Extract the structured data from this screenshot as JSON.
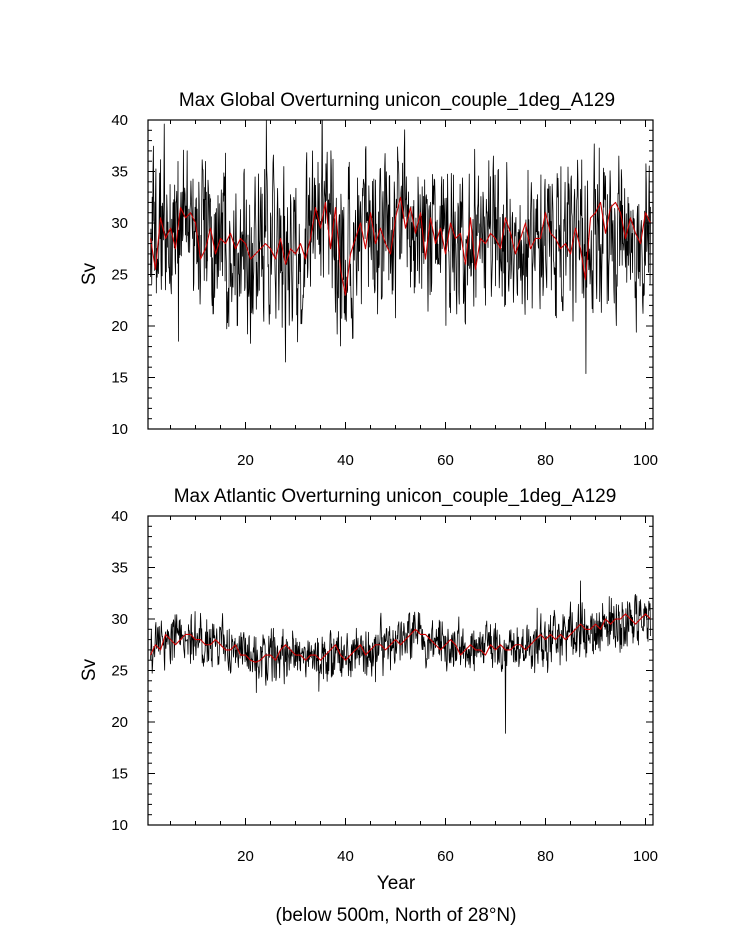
{
  "chart_data": [
    {
      "type": "line",
      "title": "Max Global Overturning unicon_couple_1deg_A129",
      "ylabel": "Sv",
      "xlabel": "",
      "xlim": [
        0.5,
        101.5
      ],
      "ylim": [
        10,
        40
      ],
      "xticks": [
        "20",
        "40",
        "60",
        "80",
        "100"
      ],
      "yticks": [
        "10",
        "15",
        "20",
        "25",
        "30",
        "35",
        "40"
      ],
      "series": [
        {
          "color": "#000000",
          "monthly": true,
          "x_start": 1,
          "x_end": 101,
          "anchor_years": [
            1,
            5,
            10,
            15,
            20,
            25,
            30,
            35,
            40,
            45,
            50,
            55,
            60,
            65,
            70,
            75,
            80,
            85,
            90,
            95,
            100,
            101
          ],
          "center": [
            28,
            29,
            30,
            29,
            28,
            27,
            27,
            30,
            26,
            29,
            29,
            29,
            28,
            28,
            28,
            28,
            28,
            28,
            29,
            29,
            29,
            28
          ],
          "amplitude": [
            6.5,
            7,
            7,
            7,
            7,
            7,
            7,
            7.5,
            8,
            7,
            7.5,
            7.5,
            7,
            7,
            7,
            7,
            7,
            7,
            7.5,
            7.5,
            7.5,
            7
          ],
          "extremes": {
            "max_value": 40,
            "min_value": 16.5,
            "min_year": 28
          }
        },
        {
          "color": "#cc0000",
          "x": [
            1,
            2,
            3,
            4,
            5,
            6,
            7,
            8,
            9,
            10,
            11,
            12,
            13,
            14,
            15,
            16,
            17,
            18,
            19,
            20,
            21,
            22,
            23,
            24,
            25,
            26,
            27,
            28,
            29,
            30,
            31,
            32,
            33,
            34,
            35,
            36,
            37,
            38,
            39,
            40,
            41,
            42,
            43,
            44,
            45,
            46,
            47,
            48,
            49,
            50,
            51,
            52,
            53,
            54,
            55,
            56,
            57,
            58,
            59,
            60,
            61,
            62,
            63,
            64,
            65,
            66,
            67,
            68,
            69,
            70,
            71,
            72,
            73,
            74,
            75,
            76,
            77,
            78,
            79,
            80,
            81,
            82,
            83,
            84,
            85,
            86,
            87,
            88,
            89,
            90,
            91,
            92,
            93,
            94,
            95,
            96,
            97,
            98,
            99,
            100,
            101
          ],
          "values": [
            28.5,
            25.5,
            30.5,
            28.5,
            29.5,
            27.5,
            31.5,
            30.5,
            31.0,
            30.0,
            26.5,
            27.5,
            29.5,
            27.0,
            28.5,
            28.0,
            29.0,
            27.5,
            28.5,
            28.0,
            26.5,
            27.0,
            27.5,
            28.0,
            27.5,
            26.5,
            28.5,
            26.0,
            27.5,
            27.0,
            28.0,
            26.5,
            28.5,
            31.5,
            29.5,
            32.0,
            27.5,
            31.5,
            25.5,
            23.0,
            27.0,
            28.5,
            30.0,
            27.5,
            31.0,
            28.0,
            29.5,
            28.0,
            27.0,
            30.5,
            32.5,
            29.5,
            31.5,
            29.0,
            31.0,
            26.5,
            30.5,
            28.0,
            29.5,
            27.0,
            30.0,
            28.5,
            29.0,
            26.0,
            30.5,
            25.5,
            28.5,
            28.0,
            29.0,
            28.5,
            27.5,
            30.5,
            29.0,
            27.0,
            28.5,
            30.0,
            27.5,
            28.5,
            28.5,
            31.0,
            29.0,
            28.5,
            27.5,
            28.0,
            27.0,
            29.5,
            27.5,
            24.5,
            30.5,
            31.0,
            32.0,
            29.0,
            31.5,
            32.0,
            31.0,
            28.5,
            30.5,
            29.0,
            28.0,
            31.0,
            30.0
          ]
        }
      ]
    },
    {
      "type": "line",
      "title": "Max Atlantic Overturning unicon_couple_1deg_A129",
      "ylabel": "Sv",
      "xlabel": "Year",
      "xlim": [
        0.5,
        101.5
      ],
      "ylim": [
        10,
        40
      ],
      "xticks": [
        "20",
        "40",
        "60",
        "80",
        "100"
      ],
      "yticks": [
        "10",
        "15",
        "20",
        "25",
        "30",
        "35",
        "40"
      ],
      "series": [
        {
          "color": "#000000",
          "monthly": true,
          "x_start": 1,
          "x_end": 101,
          "anchor_years": [
            1,
            5,
            10,
            15,
            20,
            25,
            30,
            35,
            40,
            45,
            50,
            55,
            60,
            65,
            70,
            75,
            80,
            85,
            90,
            95,
            100,
            101
          ],
          "center": [
            27.5,
            27.8,
            28,
            27.5,
            26.5,
            26.2,
            26.5,
            26.5,
            26.5,
            27,
            27.5,
            28.5,
            27.5,
            27,
            27,
            27,
            28,
            28.5,
            29,
            29.5,
            30,
            30
          ],
          "amplitude": [
            2.3,
            2.3,
            2.3,
            2.3,
            2.2,
            2.2,
            2.2,
            2.3,
            2.2,
            2.2,
            2.3,
            2.3,
            2.2,
            2.2,
            2.2,
            2.2,
            2.3,
            2.4,
            2.4,
            2.4,
            2.4,
            2.4
          ],
          "extremes": {
            "max_value": 33.7,
            "max_year": 87,
            "min_value": 18.9,
            "min_year": 72
          }
        },
        {
          "color": "#cc0000",
          "x": [
            1,
            2,
            3,
            4,
            5,
            6,
            7,
            8,
            9,
            10,
            11,
            12,
            13,
            14,
            15,
            16,
            17,
            18,
            19,
            20,
            21,
            22,
            23,
            24,
            25,
            26,
            27,
            28,
            29,
            30,
            31,
            32,
            33,
            34,
            35,
            36,
            37,
            38,
            39,
            40,
            41,
            42,
            43,
            44,
            45,
            46,
            47,
            48,
            49,
            50,
            51,
            52,
            53,
            54,
            55,
            56,
            57,
            58,
            59,
            60,
            61,
            62,
            63,
            64,
            65,
            66,
            67,
            68,
            69,
            70,
            71,
            72,
            73,
            74,
            75,
            76,
            77,
            78,
            79,
            80,
            81,
            82,
            83,
            84,
            85,
            86,
            87,
            88,
            89,
            90,
            91,
            92,
            93,
            94,
            95,
            96,
            97,
            98,
            99,
            100,
            101
          ],
          "values": [
            26.5,
            27.5,
            27.0,
            28.5,
            28.0,
            27.5,
            28.0,
            28.5,
            28.5,
            28.0,
            28.0,
            27.5,
            27.5,
            28.0,
            27.5,
            27.0,
            27.0,
            27.5,
            26.5,
            26.5,
            26.0,
            25.8,
            26.0,
            26.5,
            26.5,
            26.0,
            27.0,
            27.5,
            27.0,
            26.5,
            26.5,
            26.0,
            26.5,
            26.5,
            26.0,
            26.5,
            27.0,
            27.5,
            26.5,
            26.0,
            26.5,
            27.0,
            27.5,
            26.5,
            27.0,
            27.5,
            27.5,
            27.0,
            27.5,
            28.0,
            27.5,
            28.0,
            28.5,
            29.0,
            28.5,
            28.5,
            28.0,
            27.5,
            27.0,
            27.5,
            28.0,
            27.5,
            26.5,
            27.0,
            27.5,
            27.0,
            27.0,
            26.5,
            27.5,
            27.0,
            27.5,
            27.0,
            27.0,
            27.5,
            27.5,
            27.0,
            27.5,
            28.0,
            28.5,
            28.0,
            28.5,
            28.0,
            28.5,
            28.0,
            28.5,
            29.0,
            29.5,
            29.0,
            29.0,
            29.5,
            29.0,
            30.0,
            29.5,
            30.0,
            30.0,
            30.5,
            30.0,
            29.5,
            30.0,
            30.5,
            30.0
          ]
        }
      ]
    }
  ],
  "footer_note": "(below 500m, North of 28°N)"
}
